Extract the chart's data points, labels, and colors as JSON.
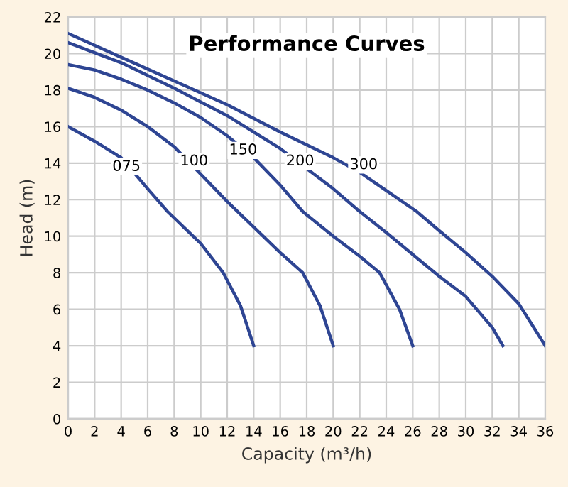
{
  "chart_data": {
    "type": "line",
    "title": "Performance Curves",
    "xlabel": "Capacity (m³/h)",
    "ylabel": "Head (m)",
    "xlim": [
      0,
      36
    ],
    "ylim": [
      0,
      22
    ],
    "xticks": [
      0,
      2,
      4,
      6,
      8,
      10,
      12,
      14,
      16,
      18,
      20,
      22,
      24,
      26,
      28,
      30,
      32,
      34,
      36
    ],
    "yticks": [
      0,
      2,
      4,
      6,
      8,
      10,
      12,
      14,
      16,
      18,
      20,
      22
    ],
    "grid": true,
    "marker": "none",
    "line_style": "solid",
    "series": [
      {
        "color": "#2e4593",
        "x": [
          0,
          2,
          4,
          6,
          7.5,
          10,
          11.7,
          13,
          14
        ],
        "values": [
          16,
          15.2,
          14.3,
          12.6,
          11.35,
          9.6,
          8,
          6.2,
          4
        ]
      },
      {
        "color": "#2e4593",
        "x": [
          0,
          2,
          4,
          6,
          8,
          10,
          12,
          14,
          16,
          17.7,
          19,
          20
        ],
        "values": [
          18.1,
          17.6,
          16.9,
          16,
          14.9,
          13.4,
          11.9,
          10.5,
          9.1,
          8,
          6.2,
          4
        ]
      },
      {
        "color": "#2e4593",
        "x": [
          0,
          2,
          4,
          6,
          8,
          10,
          12,
          14,
          16,
          17.7,
          20,
          22,
          23.5,
          25,
          26
        ],
        "values": [
          19.4,
          19.1,
          18.6,
          18,
          17.3,
          16.5,
          15.5,
          14.3,
          12.8,
          11.35,
          10,
          8.9,
          8,
          6,
          4
        ]
      },
      {
        "color": "#2e4593",
        "x": [
          0,
          4,
          8,
          12,
          16,
          18,
          20,
          22,
          24,
          26,
          28,
          30,
          32,
          32.8
        ],
        "values": [
          20.6,
          19.5,
          18.1,
          16.6,
          14.8,
          13.7,
          12.6,
          11.35,
          10.2,
          9,
          7.8,
          6.7,
          5,
          4
        ]
      },
      {
        "color": "#2e4593",
        "x": [
          0,
          4,
          8,
          12,
          16,
          20,
          22,
          24,
          26.3,
          28,
          30,
          32,
          34,
          36
        ],
        "values": [
          21.1,
          19.8,
          18.5,
          17.2,
          15.7,
          14.3,
          13.5,
          12.5,
          11.35,
          10.3,
          9.1,
          7.8,
          6.3,
          4
        ]
      }
    ],
    "annotations": [
      {
        "text": "075",
        "x": 4.4,
        "y": 13.8
      },
      {
        "text": "100",
        "x": 9.5,
        "y": 14.1
      },
      {
        "text": "150",
        "x": 13.2,
        "y": 14.7
      },
      {
        "text": "200",
        "x": 17.5,
        "y": 14.1
      },
      {
        "text": "300",
        "x": 22.3,
        "y": 13.9
      }
    ]
  }
}
